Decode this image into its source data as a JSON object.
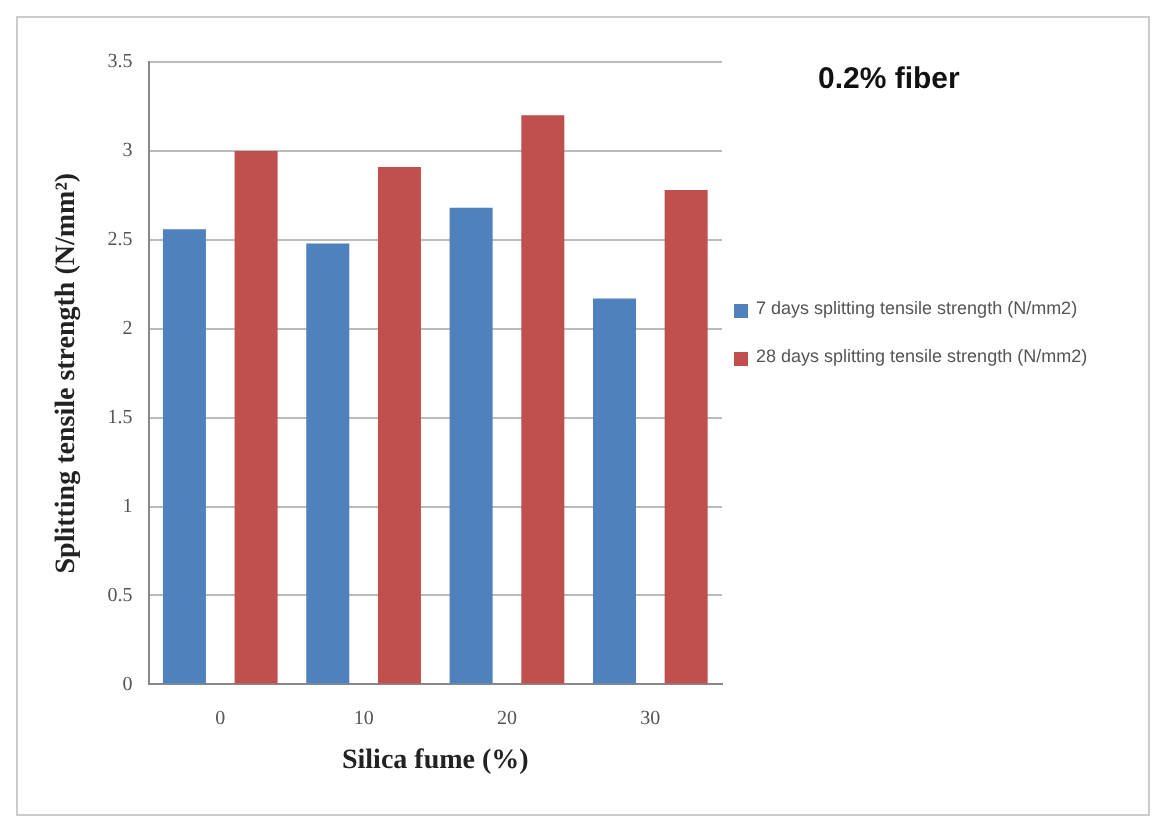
{
  "chart_data": {
    "type": "bar",
    "title": "0.2% fiber",
    "xlabel": "Silica fume (%)",
    "ylabel": "Splitting tensile strength (N/mm²)",
    "categories": [
      "0",
      "10",
      "20",
      "30"
    ],
    "series": [
      {
        "name": "7 days splitting tensile strength (N/mm2)",
        "color": "#4f81bd",
        "values": [
          2.56,
          2.48,
          2.68,
          2.17
        ]
      },
      {
        "name": "28 days splitting tensile strength (N/mm2)",
        "color": "#c0504d",
        "values": [
          3.0,
          2.91,
          3.2,
          2.78
        ]
      }
    ],
    "ylim": [
      0,
      3.5
    ],
    "yticks": [
      0,
      0.5,
      1,
      1.5,
      2,
      2.5,
      3,
      3.5
    ],
    "grid": "y",
    "legend": "right"
  }
}
